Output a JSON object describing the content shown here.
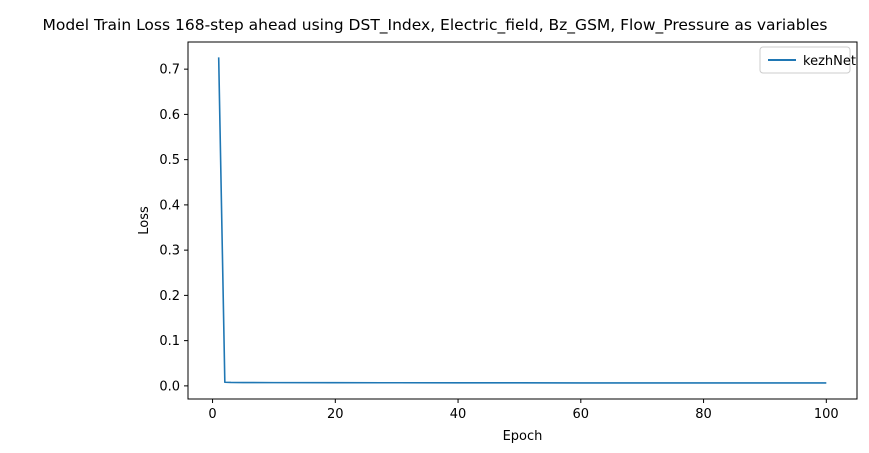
{
  "chart_data": {
    "type": "line",
    "title": "Model Train Loss 168-step ahead using DST_Index, Electric_field, Bz_GSM, Flow_Pressure as variables",
    "xlabel": "Epoch",
    "ylabel": "Loss",
    "xlim": [
      -4,
      105
    ],
    "ylim": [
      -0.029,
      0.76
    ],
    "x_ticks": [
      0,
      20,
      40,
      60,
      80,
      100
    ],
    "y_ticks": [
      0.0,
      0.1,
      0.2,
      0.3,
      0.4,
      0.5,
      0.6,
      0.7
    ],
    "x_tick_labels": [
      "0",
      "20",
      "40",
      "60",
      "80",
      "100"
    ],
    "y_tick_labels": [
      "0.0",
      "0.1",
      "0.2",
      "0.3",
      "0.4",
      "0.5",
      "0.6",
      "0.7"
    ],
    "grid": false,
    "legend_position": "upper right",
    "series": [
      {
        "name": "kezhNet",
        "color": "#1f77b4",
        "x": [
          1,
          2,
          3,
          5,
          10,
          20,
          30,
          40,
          50,
          60,
          70,
          80,
          90,
          100
        ],
        "y": [
          0.726,
          0.008,
          0.0075,
          0.0074,
          0.0072,
          0.007,
          0.0069,
          0.0068,
          0.0067,
          0.0066,
          0.0066,
          0.0065,
          0.0065,
          0.0065
        ]
      }
    ]
  }
}
